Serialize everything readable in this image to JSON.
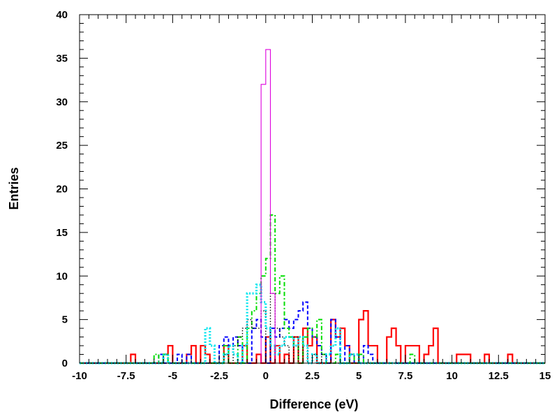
{
  "chart_data": {
    "type": "histogram",
    "title": "",
    "xlabel": "Difference (eV)",
    "ylabel": "Entries",
    "xlim": [
      -10,
      15
    ],
    "ylim": [
      0,
      40
    ],
    "x_ticks": [
      "-10",
      "-7.5",
      "-5",
      "-2.5",
      "0",
      "2.5",
      "5",
      "7.5",
      "10",
      "12.5",
      "15"
    ],
    "y_ticks": [
      "0",
      "5",
      "10",
      "15",
      "20",
      "25",
      "30",
      "35",
      "40"
    ],
    "grid": false,
    "bin_width": 0.25,
    "series": [
      {
        "color": "#ff0000",
        "style": "solid-thick",
        "bins": [
          [
            -7.25,
            1
          ],
          [
            -5.5,
            1
          ],
          [
            -5.25,
            2
          ],
          [
            -4.25,
            1
          ],
          [
            -4.0,
            2
          ],
          [
            -3.5,
            2
          ],
          [
            -3.25,
            1
          ],
          [
            -2.25,
            2
          ],
          [
            -1.25,
            2
          ],
          [
            -0.5,
            1
          ],
          [
            0.0,
            3
          ],
          [
            0.5,
            2
          ],
          [
            1.0,
            1
          ],
          [
            1.5,
            3
          ],
          [
            2.0,
            4
          ],
          [
            2.25,
            2
          ],
          [
            2.5,
            3
          ],
          [
            3.5,
            5
          ],
          [
            3.75,
            3
          ],
          [
            4.0,
            4
          ],
          [
            4.25,
            2
          ],
          [
            5.0,
            5
          ],
          [
            5.25,
            6
          ],
          [
            5.5,
            2
          ],
          [
            5.75,
            2
          ],
          [
            6.5,
            3
          ],
          [
            6.75,
            4
          ],
          [
            7.0,
            2
          ],
          [
            7.5,
            2
          ],
          [
            7.75,
            2
          ],
          [
            8.0,
            2
          ],
          [
            8.5,
            1
          ],
          [
            8.75,
            2
          ],
          [
            9.0,
            4
          ],
          [
            10.25,
            1
          ],
          [
            10.5,
            1
          ],
          [
            10.75,
            1
          ],
          [
            11.75,
            1
          ],
          [
            13.0,
            1
          ]
        ]
      },
      {
        "color": "#0000ff",
        "style": "dashed",
        "bins": [
          [
            -5.75,
            1
          ],
          [
            -4.75,
            1
          ],
          [
            -4.25,
            1
          ],
          [
            -2.5,
            2
          ],
          [
            -2.25,
            3
          ],
          [
            -2.0,
            2
          ],
          [
            -1.75,
            3
          ],
          [
            -1.5,
            2
          ],
          [
            -0.75,
            4
          ],
          [
            -0.5,
            5
          ],
          [
            -0.25,
            3
          ],
          [
            0.25,
            4
          ],
          [
            0.5,
            3
          ],
          [
            0.75,
            4
          ],
          [
            1.0,
            5
          ],
          [
            1.25,
            4
          ],
          [
            1.5,
            5
          ],
          [
            1.75,
            6
          ],
          [
            2.0,
            7
          ],
          [
            2.25,
            4
          ],
          [
            2.5,
            3
          ],
          [
            2.75,
            2
          ],
          [
            3.0,
            1
          ],
          [
            3.5,
            5
          ],
          [
            3.75,
            3
          ],
          [
            4.25,
            2
          ],
          [
            4.5,
            1
          ],
          [
            5.25,
            2
          ],
          [
            5.5,
            1
          ]
        ]
      },
      {
        "color": "#00dd00",
        "style": "dash-dot",
        "bins": [
          [
            -6.0,
            1
          ],
          [
            -5.5,
            1
          ],
          [
            -2.25,
            2
          ],
          [
            -1.5,
            3
          ],
          [
            -1.0,
            4
          ],
          [
            -0.75,
            6
          ],
          [
            -0.5,
            8
          ],
          [
            -0.25,
            10
          ],
          [
            0.0,
            12
          ],
          [
            0.25,
            17
          ],
          [
            0.5,
            8
          ],
          [
            0.75,
            10
          ],
          [
            1.0,
            4
          ],
          [
            1.25,
            3
          ],
          [
            1.5,
            2
          ],
          [
            2.0,
            3
          ],
          [
            2.25,
            4
          ],
          [
            2.5,
            3
          ],
          [
            2.75,
            5
          ],
          [
            3.0,
            1
          ],
          [
            3.75,
            1
          ],
          [
            4.5,
            1
          ],
          [
            5.0,
            1
          ],
          [
            7.75,
            1
          ]
        ]
      },
      {
        "color": "#000000",
        "style": "dotted",
        "bins": [
          [
            -2.25,
            1
          ],
          [
            -1.75,
            2
          ],
          [
            -1.5,
            3
          ],
          [
            -1.25,
            4
          ],
          [
            -1.0,
            5
          ],
          [
            -0.75,
            4
          ],
          [
            -0.5,
            4
          ],
          [
            -0.25,
            6
          ],
          [
            0.25,
            8
          ],
          [
            0.5,
            4
          ],
          [
            0.75,
            3
          ],
          [
            1.0,
            2
          ],
          [
            1.5,
            3
          ],
          [
            2.0,
            2
          ],
          [
            2.5,
            1
          ],
          [
            3.0,
            1
          ]
        ]
      },
      {
        "color": "#00e5ee",
        "style": "dotted-thick",
        "bins": [
          [
            -5.5,
            1
          ],
          [
            -3.25,
            4
          ],
          [
            -3.0,
            2
          ],
          [
            -2.25,
            1
          ],
          [
            -2.0,
            2
          ],
          [
            -1.75,
            1
          ],
          [
            -1.25,
            2
          ],
          [
            -1.0,
            8
          ],
          [
            -0.75,
            8
          ],
          [
            -0.5,
            9
          ],
          [
            -0.25,
            7
          ],
          [
            0.0,
            4
          ],
          [
            0.25,
            2
          ],
          [
            0.5,
            1
          ],
          [
            0.75,
            2
          ],
          [
            1.0,
            3
          ],
          [
            1.25,
            3
          ],
          [
            1.5,
            2
          ],
          [
            1.75,
            3
          ],
          [
            2.0,
            2
          ],
          [
            2.5,
            1
          ],
          [
            3.25,
            1
          ],
          [
            3.5,
            2
          ],
          [
            3.75,
            4
          ],
          [
            4.5,
            1
          ],
          [
            4.75,
            1
          ]
        ]
      },
      {
        "color": "#dd00dd",
        "style": "solid-thin",
        "bins": [
          [
            -0.25,
            32
          ],
          [
            0.0,
            36
          ],
          [
            0.25,
            8
          ],
          [
            0.5,
            0
          ]
        ]
      }
    ]
  }
}
